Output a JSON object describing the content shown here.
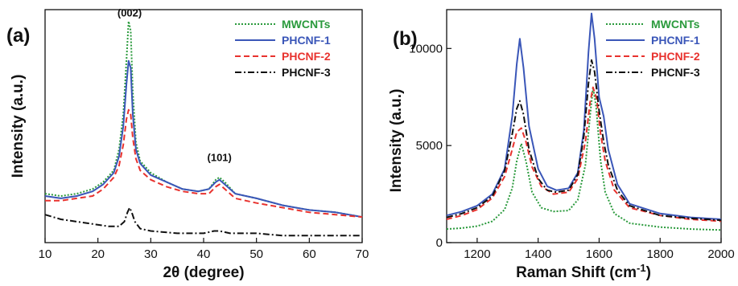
{
  "colors": {
    "mwcnts": "#2a9a3c",
    "phcnf1": "#3a56b8",
    "phcnf2": "#e8322e",
    "phcnf3": "#111111"
  },
  "chart_data": [
    {
      "type": "line",
      "panel_label": "(a)",
      "xlabel": "2θ (degree)",
      "ylabel": "Intensity (a.u.)",
      "xlim": [
        10,
        70
      ],
      "ylim": [
        0,
        100
      ],
      "x_ticks": [
        10,
        20,
        30,
        40,
        50,
        60,
        70
      ],
      "y_ticks_shown": false,
      "legend_position": "top-right",
      "annotations": [
        {
          "text": "(002)",
          "x": 26,
          "y": 97
        },
        {
          "text": "(101)",
          "x": 43,
          "y": 35
        }
      ],
      "series": [
        {
          "name": "MWCNTs",
          "color": "#2a9a3c",
          "dash": "2,2",
          "points": [
            [
              10,
              21
            ],
            [
              13,
              20
            ],
            [
              16,
              21
            ],
            [
              19,
              23
            ],
            [
              21,
              26
            ],
            [
              23,
              31
            ],
            [
              24,
              40
            ],
            [
              24.8,
              55
            ],
            [
              25.4,
              78
            ],
            [
              25.8,
              95
            ],
            [
              26.2,
              91
            ],
            [
              26.6,
              65
            ],
            [
              27.2,
              43
            ],
            [
              28,
              35
            ],
            [
              30,
              30
            ],
            [
              33,
              26
            ],
            [
              36,
              23
            ],
            [
              39,
              22
            ],
            [
              41,
              23
            ],
            [
              42.3,
              27
            ],
            [
              43,
              28
            ],
            [
              44,
              26
            ],
            [
              46,
              21
            ],
            [
              50,
              19
            ],
            [
              55,
              16
            ],
            [
              60,
              14
            ],
            [
              65,
              13
            ],
            [
              70,
              11
            ]
          ]
        },
        {
          "name": "PHCNF-1",
          "color": "#3a56b8",
          "dash": "",
          "points": [
            [
              10,
              20
            ],
            [
              13,
              19
            ],
            [
              16,
              20
            ],
            [
              19,
              22
            ],
            [
              21,
              25
            ],
            [
              23,
              30
            ],
            [
              24,
              37
            ],
            [
              24.8,
              50
            ],
            [
              25.4,
              68
            ],
            [
              25.8,
              78
            ],
            [
              26.2,
              75
            ],
            [
              26.6,
              55
            ],
            [
              27.2,
              40
            ],
            [
              28,
              34
            ],
            [
              30,
              29
            ],
            [
              33,
              26
            ],
            [
              36,
              23
            ],
            [
              39,
              22
            ],
            [
              41,
              23
            ],
            [
              42.3,
              26
            ],
            [
              43,
              27
            ],
            [
              44,
              25
            ],
            [
              46,
              21
            ],
            [
              50,
              19
            ],
            [
              55,
              16
            ],
            [
              60,
              14
            ],
            [
              65,
              13
            ],
            [
              70,
              11
            ]
          ]
        },
        {
          "name": "PHCNF-2",
          "color": "#e8322e",
          "dash": "7,4",
          "points": [
            [
              10,
              18
            ],
            [
              13,
              18
            ],
            [
              16,
              19
            ],
            [
              19,
              20
            ],
            [
              21,
              23
            ],
            [
              23,
              28
            ],
            [
              24,
              33
            ],
            [
              24.8,
              42
            ],
            [
              25.4,
              53
            ],
            [
              25.8,
              57
            ],
            [
              26.2,
              55
            ],
            [
              26.6,
              45
            ],
            [
              27.2,
              36
            ],
            [
              28,
              31
            ],
            [
              30,
              27
            ],
            [
              33,
              24
            ],
            [
              36,
              22
            ],
            [
              39,
              21
            ],
            [
              41,
              21
            ],
            [
              42.3,
              24
            ],
            [
              43,
              25
            ],
            [
              44,
              23
            ],
            [
              46,
              19
            ],
            [
              50,
              17
            ],
            [
              55,
              15
            ],
            [
              60,
              13
            ],
            [
              65,
              12
            ],
            [
              70,
              11
            ]
          ]
        },
        {
          "name": "PHCNF-3",
          "color": "#111111",
          "dash": "8,3,2,3",
          "points": [
            [
              10,
              12
            ],
            [
              13,
              10
            ],
            [
              16,
              9
            ],
            [
              19,
              8
            ],
            [
              22,
              7
            ],
            [
              24,
              7
            ],
            [
              25,
              9
            ],
            [
              25.6,
              13
            ],
            [
              26,
              15
            ],
            [
              26.4,
              13
            ],
            [
              27,
              9
            ],
            [
              28,
              6
            ],
            [
              30,
              5
            ],
            [
              35,
              4
            ],
            [
              40,
              4
            ],
            [
              42,
              5
            ],
            [
              43,
              5
            ],
            [
              45,
              4
            ],
            [
              50,
              4
            ],
            [
              55,
              3
            ],
            [
              60,
              3
            ],
            [
              65,
              3
            ],
            [
              70,
              3
            ]
          ]
        }
      ]
    },
    {
      "type": "line",
      "panel_label": "(b)",
      "xlabel": "Raman Shift (cm",
      "xlabel_superscript": "-1",
      "xlabel_suffix": ")",
      "ylabel": "Intensity (a.u.)",
      "xlim": [
        1100,
        2000
      ],
      "ylim": [
        0,
        12000
      ],
      "x_ticks": [
        1200,
        1400,
        1600,
        1800,
        2000
      ],
      "y_ticks": [
        0,
        5000,
        10000
      ],
      "legend_position": "top-right",
      "series": [
        {
          "name": "MWCNTs",
          "color": "#2a9a3c",
          "dash": "2,2",
          "points": [
            [
              1100,
              700
            ],
            [
              1150,
              750
            ],
            [
              1200,
              850
            ],
            [
              1250,
              1100
            ],
            [
              1290,
              1700
            ],
            [
              1315,
              2800
            ],
            [
              1330,
              4200
            ],
            [
              1345,
              5100
            ],
            [
              1360,
              4200
            ],
            [
              1380,
              2600
            ],
            [
              1410,
              1800
            ],
            [
              1450,
              1600
            ],
            [
              1500,
              1650
            ],
            [
              1530,
              2200
            ],
            [
              1555,
              4000
            ],
            [
              1570,
              6500
            ],
            [
              1580,
              8000
            ],
            [
              1590,
              7000
            ],
            [
              1605,
              4200
            ],
            [
              1620,
              2600
            ],
            [
              1650,
              1500
            ],
            [
              1700,
              1000
            ],
            [
              1800,
              800
            ],
            [
              1900,
              700
            ],
            [
              2000,
              650
            ]
          ]
        },
        {
          "name": "PHCNF-1",
          "color": "#3a56b8",
          "dash": "",
          "points": [
            [
              1100,
              1400
            ],
            [
              1150,
              1600
            ],
            [
              1200,
              1900
            ],
            [
              1250,
              2500
            ],
            [
              1290,
              3800
            ],
            [
              1315,
              6500
            ],
            [
              1330,
              9200
            ],
            [
              1340,
              10500
            ],
            [
              1352,
              9000
            ],
            [
              1370,
              6000
            ],
            [
              1400,
              3800
            ],
            [
              1430,
              2900
            ],
            [
              1460,
              2700
            ],
            [
              1500,
              2800
            ],
            [
              1530,
              3600
            ],
            [
              1550,
              5800
            ],
            [
              1565,
              9800
            ],
            [
              1575,
              11800
            ],
            [
              1585,
              10500
            ],
            [
              1600,
              7500
            ],
            [
              1615,
              6500
            ],
            [
              1630,
              4800
            ],
            [
              1660,
              3000
            ],
            [
              1700,
              2000
            ],
            [
              1800,
              1500
            ],
            [
              1900,
              1300
            ],
            [
              2000,
              1200
            ]
          ]
        },
        {
          "name": "PHCNF-2",
          "color": "#e8322e",
          "dash": "7,4",
          "points": [
            [
              1100,
              1200
            ],
            [
              1150,
              1400
            ],
            [
              1200,
              1700
            ],
            [
              1250,
              2300
            ],
            [
              1290,
              3400
            ],
            [
              1315,
              4800
            ],
            [
              1330,
              5700
            ],
            [
              1345,
              5900
            ],
            [
              1360,
              5200
            ],
            [
              1380,
              3900
            ],
            [
              1410,
              2900
            ],
            [
              1450,
              2500
            ],
            [
              1500,
              2600
            ],
            [
              1530,
              3300
            ],
            [
              1555,
              5200
            ],
            [
              1570,
              7200
            ],
            [
              1580,
              8000
            ],
            [
              1592,
              7400
            ],
            [
              1605,
              5600
            ],
            [
              1620,
              4200
            ],
            [
              1650,
              2700
            ],
            [
              1700,
              1800
            ],
            [
              1800,
              1400
            ],
            [
              1900,
              1200
            ],
            [
              2000,
              1100
            ]
          ]
        },
        {
          "name": "PHCNF-3",
          "color": "#111111",
          "dash": "8,3,2,3",
          "points": [
            [
              1100,
              1300
            ],
            [
              1150,
              1500
            ],
            [
              1200,
              1800
            ],
            [
              1250,
              2400
            ],
            [
              1290,
              3700
            ],
            [
              1315,
              5600
            ],
            [
              1330,
              6900
            ],
            [
              1340,
              7300
            ],
            [
              1352,
              6600
            ],
            [
              1370,
              4800
            ],
            [
              1400,
              3300
            ],
            [
              1430,
              2700
            ],
            [
              1460,
              2600
            ],
            [
              1500,
              2700
            ],
            [
              1530,
              3500
            ],
            [
              1550,
              5500
            ],
            [
              1565,
              8200
            ],
            [
              1575,
              9400
            ],
            [
              1585,
              8800
            ],
            [
              1600,
              6800
            ],
            [
              1615,
              5200
            ],
            [
              1630,
              4000
            ],
            [
              1660,
              2700
            ],
            [
              1700,
              1900
            ],
            [
              1800,
              1400
            ],
            [
              1900,
              1250
            ],
            [
              2000,
              1150
            ]
          ]
        }
      ]
    }
  ]
}
